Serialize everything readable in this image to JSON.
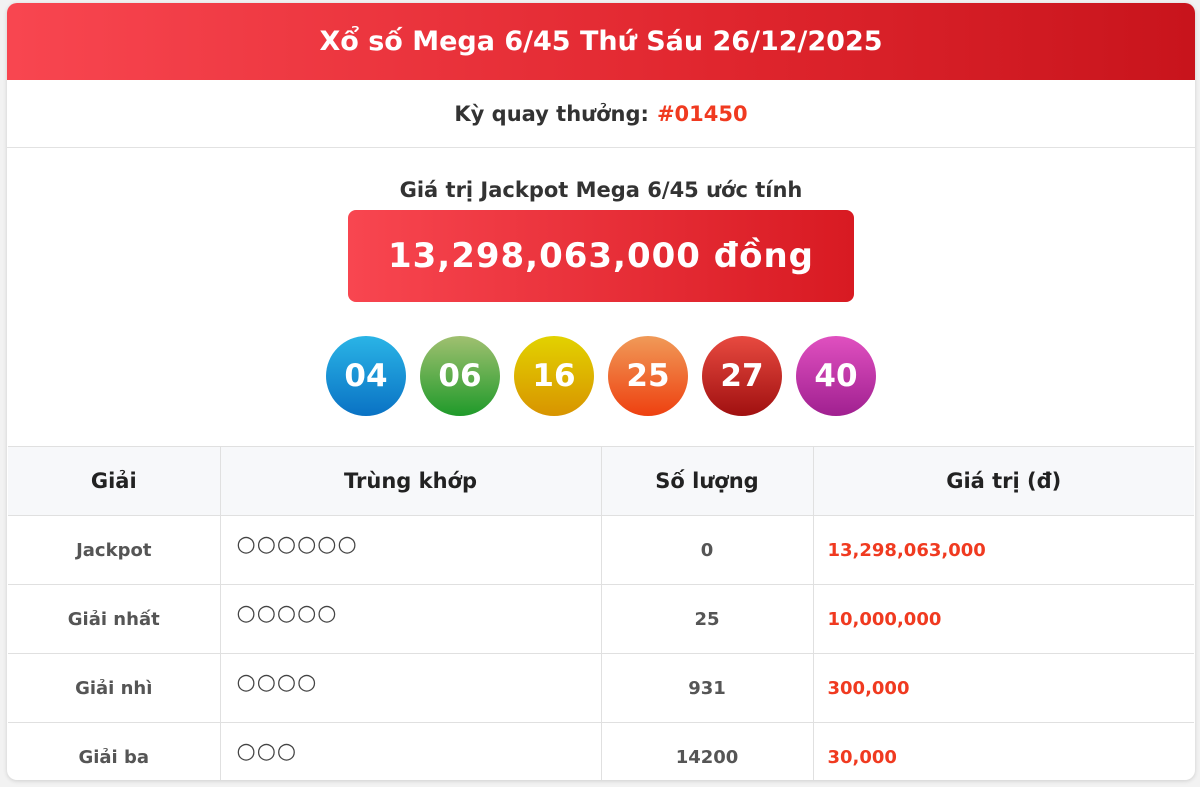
{
  "header": {
    "title": "Xổ số Mega 6/45 Thứ Sáu 26/12/2025"
  },
  "draw": {
    "label": "Kỳ quay thưởng:",
    "number": "#01450"
  },
  "jackpot": {
    "label": "Giá trị Jackpot Mega 6/45 ước tính",
    "value": "13,298,063,000 đồng"
  },
  "balls": [
    {
      "number": "04",
      "color": "#1a8fd8"
    },
    {
      "number": "06",
      "color": "#4aa23a"
    },
    {
      "number": "16",
      "color": "#dbb800"
    },
    {
      "number": "25",
      "color": "#ee5a20"
    },
    {
      "number": "27",
      "color": "#c4201e"
    },
    {
      "number": "40",
      "color": "#c03aa8"
    }
  ],
  "table": {
    "headers": [
      "Giải",
      "Trùng khớp",
      "Số lượng",
      "Giá trị (đ)"
    ],
    "rows": [
      {
        "prize": "Jackpot",
        "match": "○○○○○○",
        "count": "0",
        "value": "13,298,063,000"
      },
      {
        "prize": "Giải nhất",
        "match": "○○○○○",
        "count": "25",
        "value": "10,000,000"
      },
      {
        "prize": "Giải nhì",
        "match": "○○○○",
        "count": "931",
        "value": "300,000"
      },
      {
        "prize": "Giải ba",
        "match": "○○○",
        "count": "14200",
        "value": "30,000"
      }
    ]
  },
  "colors": {
    "accent": "#e0262e",
    "value_text": "#f03a20"
  }
}
